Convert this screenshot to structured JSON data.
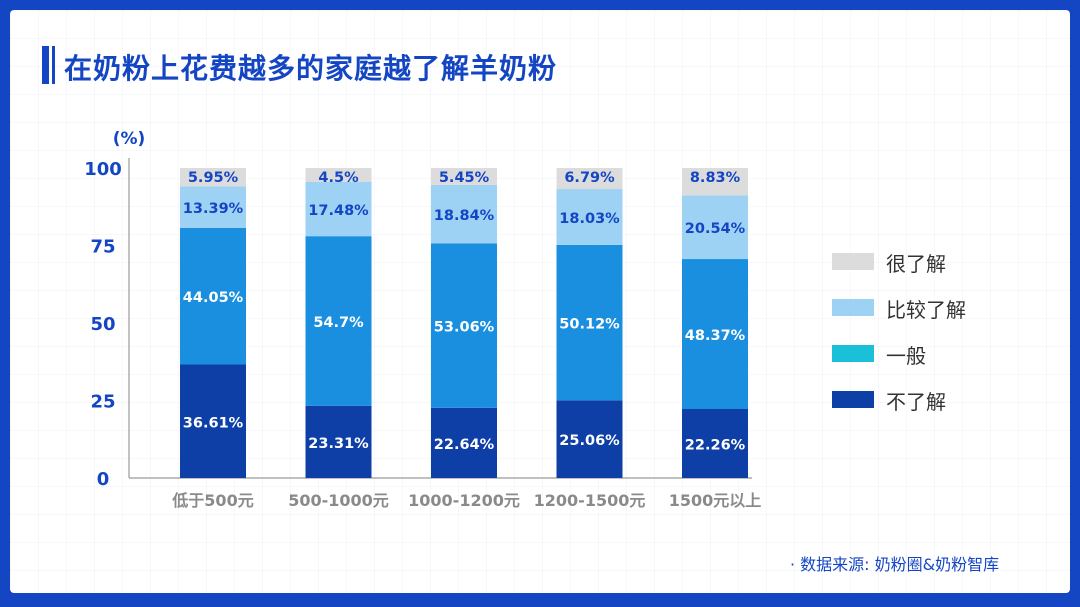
{
  "page": {
    "title": "在奶粉上花费越多的家庭越了解羊奶粉",
    "source": "· 数据来源: 奶粉圈&奶粉智库"
  },
  "chart_data": {
    "type": "bar",
    "stacked": true,
    "unit_label": "(%)",
    "categories": [
      "低于500元",
      "500-1000元",
      "1000-1200元",
      "1200-1500元",
      "1500元以上"
    ],
    "ylim": [
      0,
      100
    ],
    "yticks": [
      0,
      25,
      50,
      75,
      100
    ],
    "series": [
      {
        "name": "不了解",
        "color": "#0d3fa6",
        "values": [
          36.61,
          23.31,
          22.64,
          25.06,
          22.26
        ],
        "labels": [
          "36.61%",
          "23.31%",
          "22.64%",
          "25.06%",
          "22.26%"
        ]
      },
      {
        "name": "一般",
        "color": "#1a8fe0",
        "legend_color": "#19c0d8",
        "values": [
          44.05,
          54.7,
          53.06,
          50.12,
          48.37
        ],
        "labels": [
          "44.05%",
          "54.7%",
          "53.06%",
          "50.12%",
          "48.37%"
        ]
      },
      {
        "name": "比较了解",
        "color": "#9dd2f5",
        "values": [
          13.39,
          17.48,
          18.84,
          18.03,
          20.54
        ],
        "labels": [
          "13.39%",
          "17.48%",
          "18.84%",
          "18.03%",
          "20.54%"
        ]
      },
      {
        "name": "很了解",
        "color": "#dcdcdc",
        "values": [
          5.95,
          4.5,
          5.45,
          6.79,
          8.83
        ],
        "labels": [
          "5.95%",
          "4.5%",
          "5.45%",
          "6.79%",
          "8.83%"
        ]
      }
    ],
    "legend": [
      {
        "name": "很了解",
        "color": "#dcdcdc"
      },
      {
        "name": "比较了解",
        "color": "#9dd2f5"
      },
      {
        "name": "一般",
        "color": "#19c0d8"
      },
      {
        "name": "不了解",
        "color": "#0d3fa6"
      }
    ],
    "legend_position": "right",
    "grid": false
  }
}
